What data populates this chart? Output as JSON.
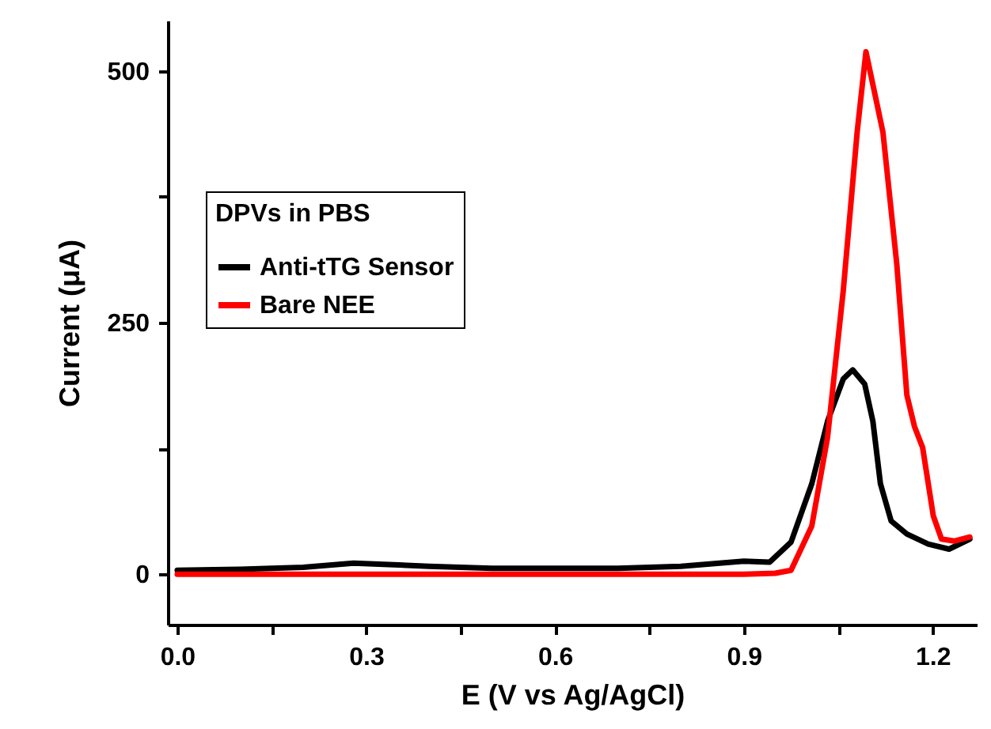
{
  "chart_data": {
    "type": "line",
    "xlabel": "E (V vs Ag/AgCl)",
    "ylabel": "Current (μA)",
    "legend_title": "DPVs in PBS",
    "legend": "left",
    "grid": false,
    "line_style": "solid",
    "marker": "none",
    "xlim": [
      -0.015,
      1.27
    ],
    "ylim": [
      -50,
      550
    ],
    "xticks": [
      {
        "value": 0,
        "label": "0.0"
      },
      {
        "value": 0.15,
        "label": null
      },
      {
        "value": 0.3,
        "label": "0.3"
      },
      {
        "value": 0.45,
        "label": null
      },
      {
        "value": 0.6,
        "label": "0.6"
      },
      {
        "value": 0.75,
        "label": null
      },
      {
        "value": 0.9,
        "label": "0.9"
      },
      {
        "value": 1.05,
        "label": null
      },
      {
        "value": 1.2,
        "label": "1.2"
      }
    ],
    "yticks": [
      0,
      {
        "value": 125,
        "label": null
      },
      250,
      {
        "value": 375,
        "label": null
      },
      500
    ],
    "series": [
      {
        "name": "Anti-tTG Sensor",
        "color": "#000000",
        "x": [
          0,
          0.1,
          0.2,
          0.28,
          0.4,
          0.5,
          0.6,
          0.7,
          0.8,
          0.9,
          0.941,
          0.975,
          1.008,
          1.033,
          1.058,
          1.073,
          1.092,
          1.105,
          1.117,
          1.134,
          1.159,
          1.193,
          1.226,
          1.259
        ],
        "values": [
          4,
          5,
          7,
          11,
          8,
          6,
          6,
          6,
          8,
          13,
          12,
          32,
          90,
          152,
          194,
          203,
          189,
          152,
          90,
          53,
          40,
          30,
          25,
          35
        ]
      },
      {
        "name": "Bare NEE",
        "color": "#ff0000",
        "x": [
          0,
          0.2,
          0.4,
          0.6,
          0.8,
          0.9,
          0.95,
          0.975,
          1.008,
          1.033,
          1.058,
          1.08,
          1.094,
          1.121,
          1.143,
          1.159,
          1.171,
          1.184,
          1.201,
          1.214,
          1.234,
          1.259
        ],
        "values": [
          0,
          0,
          0,
          0,
          0,
          0,
          1,
          4,
          48,
          136,
          282,
          439,
          519,
          439,
          308,
          178,
          147,
          126,
          58,
          35,
          33,
          37
        ]
      }
    ]
  }
}
